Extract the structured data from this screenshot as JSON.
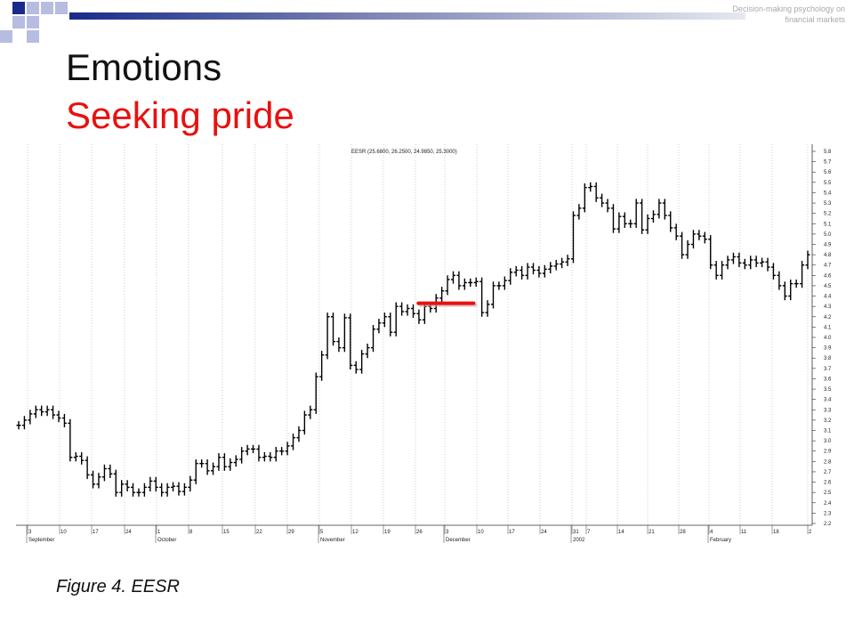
{
  "header": {
    "corner_note": "Decision-making psychology on financial markets",
    "title": "Emotions",
    "subtitle": "Seeking pride",
    "accent_color": "#e8110f",
    "brand_color": "#1a2a8a"
  },
  "caption": "Figure 4. EESR",
  "chart_data": {
    "type": "ohlc",
    "legend": "EESR (25.6800, 26.2500, 24.9850, 25.3000)",
    "ylim": [
      2.2,
      5.8
    ],
    "y_ticks": [
      "2.2",
      "2.3",
      "2.4",
      "2.5",
      "2.6",
      "2.7",
      "2.8",
      "2.9",
      "3.0",
      "3.1",
      "3.2",
      "3.3",
      "3.4",
      "3.5",
      "3.6",
      "3.7",
      "3.8",
      "3.9",
      "4.0",
      "4.1",
      "4.2",
      "4.3",
      "4.4",
      "4.5",
      "4.6",
      "4.7",
      "4.8",
      "4.9",
      "5.0",
      "5.1",
      "5.2",
      "5.3",
      "5.4",
      "5.5",
      "5.6",
      "5.7",
      "5.8"
    ],
    "x_ticks": [
      "3",
      "10",
      "17",
      "24",
      "1",
      "8",
      "15",
      "22",
      "29",
      "5",
      "12",
      "19",
      "26",
      "3",
      "10",
      "17",
      "24",
      "31",
      "7",
      "14",
      "21",
      "28",
      "4",
      "11",
      "18",
      "2"
    ],
    "months": [
      {
        "label": "September",
        "tick_index": 0
      },
      {
        "label": "October",
        "tick_index": 4
      },
      {
        "label": "November",
        "tick_index": 9
      },
      {
        "label": "December",
        "tick_index": 13
      },
      {
        "label": "2002",
        "tick_index": 17
      },
      {
        "label": "February",
        "tick_index": 22
      }
    ],
    "bar_color": "#000000",
    "highlight": {
      "color": "#e8110f",
      "price": 4.33,
      "from_tick": 12.1,
      "to_tick": 13.9
    },
    "closes": [
      3.15,
      3.2,
      3.26,
      3.3,
      3.28,
      3.3,
      3.25,
      3.22,
      3.17,
      2.84,
      2.85,
      2.81,
      2.67,
      2.58,
      2.65,
      2.73,
      2.68,
      2.5,
      2.58,
      2.55,
      2.5,
      2.5,
      2.55,
      2.61,
      2.55,
      2.5,
      2.55,
      2.56,
      2.51,
      2.55,
      2.62,
      2.78,
      2.78,
      2.71,
      2.75,
      2.84,
      2.75,
      2.79,
      2.82,
      2.9,
      2.92,
      2.92,
      2.84,
      2.85,
      2.84,
      2.9,
      2.9,
      2.95,
      3.03,
      3.1,
      3.25,
      3.3,
      3.62,
      3.83,
      4.2,
      3.96,
      3.9,
      4.19,
      3.73,
      3.69,
      3.84,
      3.9,
      4.08,
      4.14,
      4.2,
      4.05,
      4.3,
      4.25,
      4.28,
      4.23,
      4.17,
      4.3,
      4.28,
      4.38,
      4.45,
      4.56,
      4.6,
      4.5,
      4.53,
      4.53,
      4.54,
      4.24,
      4.32,
      4.5,
      4.5,
      4.55,
      4.63,
      4.65,
      4.6,
      4.68,
      4.65,
      4.62,
      4.66,
      4.69,
      4.71,
      4.73,
      4.76,
      5.18,
      5.25,
      5.45,
      5.46,
      5.35,
      5.3,
      5.25,
      5.05,
      5.17,
      5.1,
      5.1,
      5.3,
      5.04,
      5.15,
      5.19,
      5.3,
      5.18,
      5.06,
      4.98,
      4.8,
      4.9,
      5.0,
      4.98,
      4.95,
      4.7,
      4.6,
      4.7,
      4.75,
      4.78,
      4.72,
      4.7,
      4.75,
      4.72,
      4.73,
      4.68,
      4.6,
      4.5,
      4.4,
      4.52,
      4.52,
      4.7,
      4.8
    ]
  }
}
